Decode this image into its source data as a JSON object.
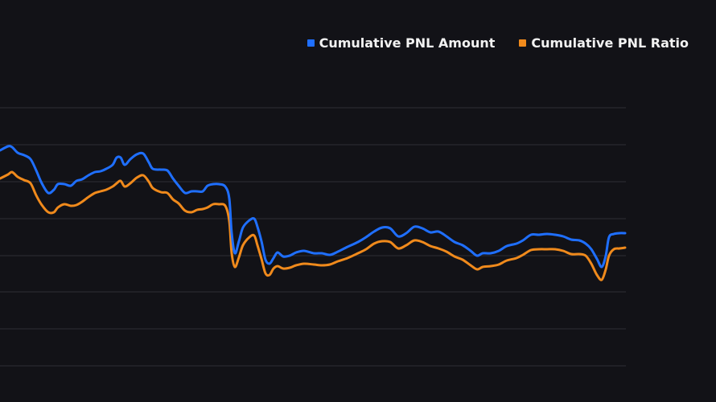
{
  "chart_data": {
    "type": "line",
    "title": "",
    "xlabel": "",
    "ylabel": "",
    "legend_position": "top-right",
    "grid": true,
    "colors": {
      "background": "#121217",
      "grid": "#2e2f35",
      "series_1": "#1f6fff",
      "series_2": "#f08a1c"
    },
    "series": [
      {
        "name": "Cumulative PNL Amount",
        "color": "#1f6fff",
        "values": [
          [
            0,
            187
          ],
          [
            10,
            182
          ],
          [
            15,
            183
          ],
          [
            22,
            190
          ],
          [
            30,
            193
          ],
          [
            38,
            198
          ],
          [
            45,
            212
          ],
          [
            52,
            228
          ],
          [
            60,
            240
          ],
          [
            67,
            236
          ],
          [
            72,
            229
          ],
          [
            80,
            229
          ],
          [
            88,
            231
          ],
          [
            95,
            225
          ],
          [
            102,
            223
          ],
          [
            110,
            218
          ],
          [
            118,
            214
          ],
          [
            125,
            213
          ],
          [
            132,
            210
          ],
          [
            140,
            205
          ],
          [
            145,
            196
          ],
          [
            150,
            196
          ],
          [
            155,
            205
          ],
          [
            162,
            198
          ],
          [
            170,
            192
          ],
          [
            178,
            191
          ],
          [
            185,
            202
          ],
          [
            190,
            210
          ],
          [
            200,
            211
          ],
          [
            208,
            212
          ],
          [
            215,
            222
          ],
          [
            222,
            231
          ],
          [
            230,
            240
          ],
          [
            238,
            238
          ],
          [
            245,
            238
          ],
          [
            252,
            238
          ],
          [
            258,
            231
          ],
          [
            265,
            229
          ],
          [
            272,
            229
          ],
          [
            280,
            232
          ],
          [
            285,
            247
          ],
          [
            288,
            290
          ],
          [
            292,
            315
          ],
          [
            297,
            300
          ],
          [
            302,
            283
          ],
          [
            310,
            274
          ],
          [
            316,
            272
          ],
          [
            320,
            282
          ],
          [
            325,
            300
          ],
          [
            330,
            323
          ],
          [
            335,
            328
          ],
          [
            340,
            321
          ],
          [
            345,
            314
          ],
          [
            352,
            319
          ],
          [
            360,
            318
          ],
          [
            368,
            314
          ],
          [
            378,
            312
          ],
          [
            390,
            315
          ],
          [
            400,
            315
          ],
          [
            410,
            317
          ],
          [
            420,
            313
          ],
          [
            432,
            307
          ],
          [
            445,
            301
          ],
          [
            455,
            295
          ],
          [
            465,
            288
          ],
          [
            475,
            283
          ],
          [
            485,
            284
          ],
          [
            495,
            294
          ],
          [
            505,
            290
          ],
          [
            515,
            282
          ],
          [
            525,
            284
          ],
          [
            535,
            289
          ],
          [
            545,
            288
          ],
          [
            555,
            294
          ],
          [
            565,
            301
          ],
          [
            575,
            305
          ],
          [
            585,
            312
          ],
          [
            593,
            318
          ],
          [
            600,
            315
          ],
          [
            610,
            315
          ],
          [
            620,
            312
          ],
          [
            630,
            306
          ],
          [
            642,
            303
          ],
          [
            650,
            299
          ],
          [
            660,
            292
          ],
          [
            670,
            292
          ],
          [
            680,
            291
          ],
          [
            690,
            292
          ],
          [
            700,
            294
          ],
          [
            710,
            298
          ],
          [
            720,
            299
          ],
          [
            728,
            303
          ],
          [
            735,
            310
          ],
          [
            742,
            322
          ],
          [
            748,
            332
          ],
          [
            753,
            318
          ],
          [
            757,
            295
          ],
          [
            763,
            291
          ],
          [
            770,
            290
          ],
          [
            777,
            290
          ]
        ]
      },
      {
        "name": "Cumulative PNL Ratio",
        "color": "#f08a1c",
        "values": [
          [
            0,
            222
          ],
          [
            10,
            217
          ],
          [
            15,
            214
          ],
          [
            22,
            220
          ],
          [
            30,
            224
          ],
          [
            38,
            228
          ],
          [
            45,
            243
          ],
          [
            52,
            255
          ],
          [
            60,
            264
          ],
          [
            67,
            264
          ],
          [
            72,
            258
          ],
          [
            80,
            254
          ],
          [
            88,
            256
          ],
          [
            95,
            255
          ],
          [
            102,
            251
          ],
          [
            110,
            245
          ],
          [
            118,
            240
          ],
          [
            125,
            238
          ],
          [
            132,
            236
          ],
          [
            140,
            232
          ],
          [
            145,
            228
          ],
          [
            150,
            225
          ],
          [
            155,
            232
          ],
          [
            162,
            228
          ],
          [
            170,
            221
          ],
          [
            178,
            218
          ],
          [
            185,
            226
          ],
          [
            190,
            234
          ],
          [
            200,
            239
          ],
          [
            208,
            240
          ],
          [
            215,
            248
          ],
          [
            222,
            253
          ],
          [
            230,
            262
          ],
          [
            238,
            264
          ],
          [
            245,
            261
          ],
          [
            252,
            260
          ],
          [
            258,
            258
          ],
          [
            265,
            254
          ],
          [
            272,
            254
          ],
          [
            280,
            256
          ],
          [
            285,
            275
          ],
          [
            288,
            315
          ],
          [
            292,
            332
          ],
          [
            297,
            320
          ],
          [
            302,
            305
          ],
          [
            310,
            295
          ],
          [
            316,
            293
          ],
          [
            320,
            305
          ],
          [
            325,
            322
          ],
          [
            330,
            340
          ],
          [
            335,
            342
          ],
          [
            340,
            334
          ],
          [
            345,
            331
          ],
          [
            352,
            334
          ],
          [
            360,
            333
          ],
          [
            368,
            330
          ],
          [
            378,
            328
          ],
          [
            390,
            329
          ],
          [
            400,
            330
          ],
          [
            410,
            329
          ],
          [
            420,
            325
          ],
          [
            432,
            321
          ],
          [
            445,
            315
          ],
          [
            455,
            310
          ],
          [
            465,
            303
          ],
          [
            475,
            300
          ],
          [
            485,
            301
          ],
          [
            495,
            309
          ],
          [
            505,
            305
          ],
          [
            515,
            299
          ],
          [
            525,
            301
          ],
          [
            535,
            306
          ],
          [
            545,
            309
          ],
          [
            555,
            313
          ],
          [
            565,
            319
          ],
          [
            575,
            323
          ],
          [
            585,
            330
          ],
          [
            593,
            335
          ],
          [
            600,
            332
          ],
          [
            610,
            331
          ],
          [
            620,
            329
          ],
          [
            630,
            324
          ],
          [
            642,
            321
          ],
          [
            650,
            317
          ],
          [
            660,
            311
          ],
          [
            670,
            310
          ],
          [
            680,
            310
          ],
          [
            690,
            310
          ],
          [
            700,
            312
          ],
          [
            710,
            316
          ],
          [
            720,
            316
          ],
          [
            728,
            318
          ],
          [
            735,
            328
          ],
          [
            742,
            342
          ],
          [
            748,
            348
          ],
          [
            753,
            335
          ],
          [
            757,
            318
          ],
          [
            763,
            310
          ],
          [
            770,
            309
          ],
          [
            777,
            308
          ]
        ]
      }
    ]
  }
}
